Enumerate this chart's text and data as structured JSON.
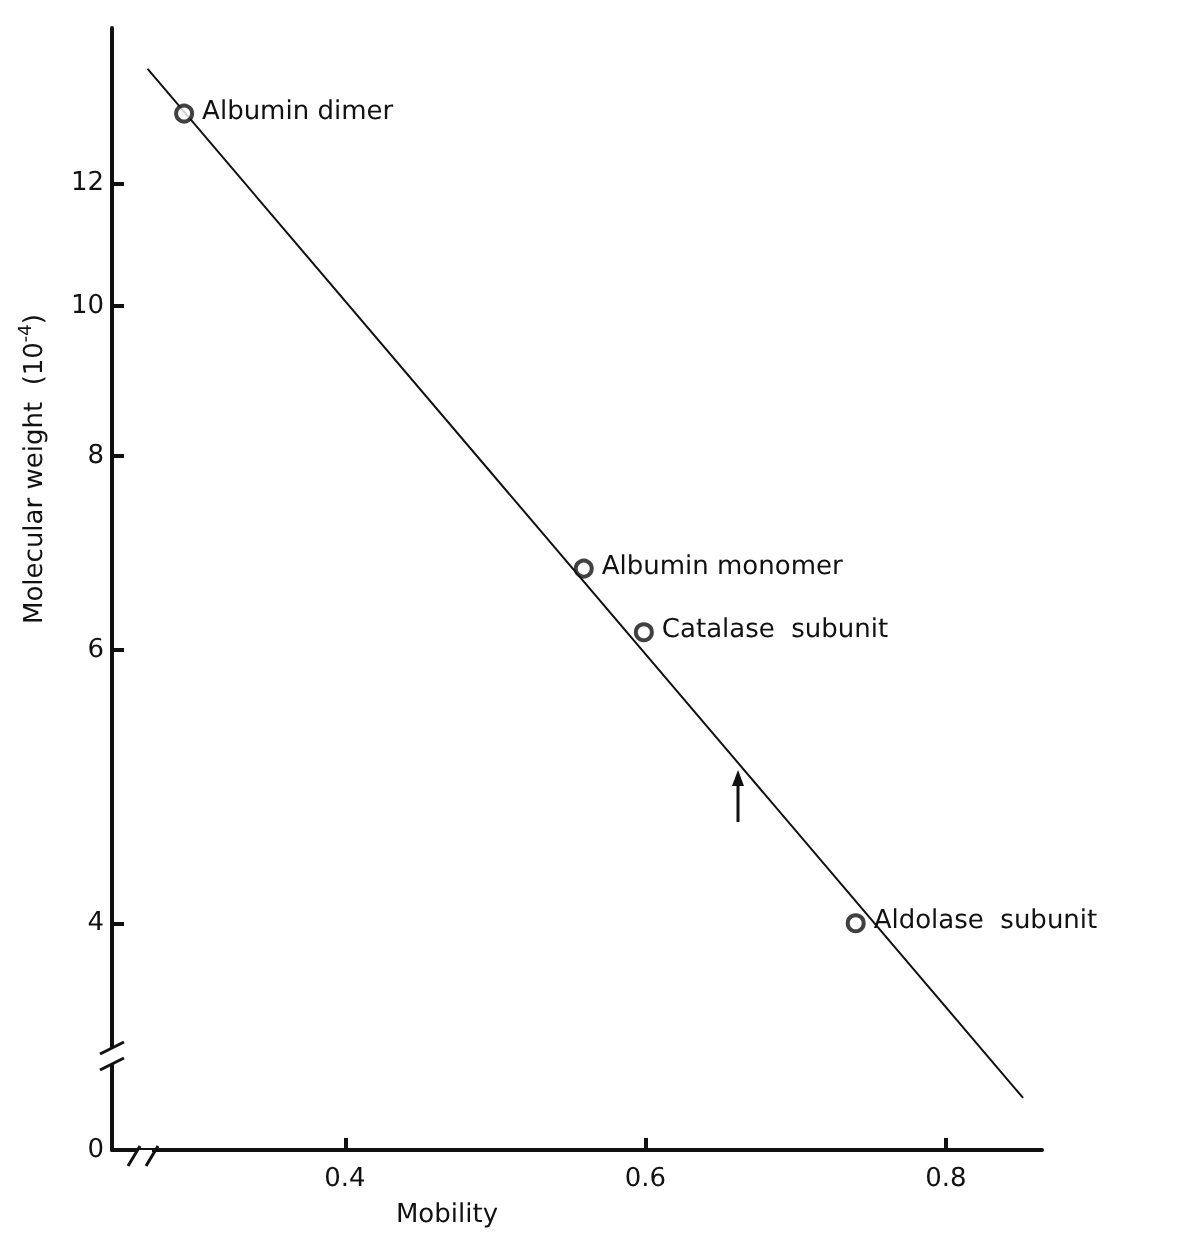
{
  "chart_data": {
    "type": "scatter",
    "xlabel": "Mobility",
    "ylabel": "Molecular weight  (10$^{-4}$)",
    "log": "y",
    "marker": "circle",
    "xlim": [
      0.245,
      0.864
    ],
    "xticks": [
      0.4,
      0.6,
      0.8
    ],
    "ylim": [
      0,
      15.1
    ],
    "yticks": [
      0,
      4,
      6,
      8,
      10,
      12
    ],
    "series": [
      {
        "type": "line",
        "marker": "none",
        "color": "#111111",
        "x": [
          0.269,
          0.851
        ],
        "values": [
          14.2,
          3.09
        ]
      },
      {
        "color": "#111111",
        "x": [
          0.293,
          0.559,
          0.599,
          0.74
        ],
        "values": [
          13.3,
          6.77,
          6.16,
          4.0
        ]
      }
    ],
    "annotations": [
      {
        "text": "Albumin dimer",
        "x": 0.293,
        "y": 13.3
      },
      {
        "text": "Albumin monomer",
        "x": 0.559,
        "y": 6.77
      },
      {
        "text": "Catalase  subunit",
        "x": 0.599,
        "y": 6.16
      },
      {
        "text": "Aldolase  subunit",
        "x": 0.74,
        "y": 4.0
      }
    ]
  }
}
